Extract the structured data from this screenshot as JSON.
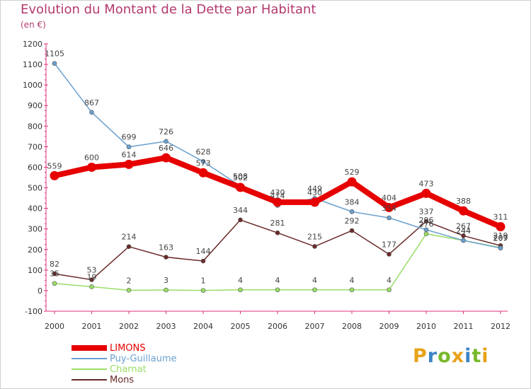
{
  "chart_data": {
    "type": "line",
    "title": "Evolution du Montant de la Dette par Habitant",
    "unit_label": "(en €)",
    "x": [
      "2000",
      "2001",
      "2002",
      "2003",
      "2004",
      "2005",
      "2006",
      "2007",
      "2008",
      "2009",
      "2010",
      "2011",
      "2012"
    ],
    "ylim": [
      -100,
      1200
    ],
    "yticks": [
      -100,
      0,
      100,
      200,
      300,
      400,
      500,
      600,
      700,
      800,
      900,
      1000,
      1100,
      1200
    ],
    "grid": false,
    "legend_position": "bottom-left",
    "series": [
      {
        "name": "LIMONS",
        "color": "#e60000",
        "values": [
          559,
          600,
          614,
          646,
          573,
          502,
          430,
          430,
          529,
          404,
          473,
          388,
          311
        ]
      },
      {
        "name": "Puy-Guillaume",
        "color": "#6aa0cf",
        "values": [
          1105,
          867,
          699,
          726,
          628,
          508,
          414,
          449,
          384,
          354,
          296,
          244,
          207
        ]
      },
      {
        "name": "Charnat",
        "color": "#99dd66",
        "values": [
          35,
          19,
          2,
          3,
          1,
          4,
          4,
          4,
          4,
          4,
          276,
          244,
          209
        ]
      },
      {
        "name": "Mons",
        "color": "#6b2a2a",
        "values": [
          82,
          53,
          214,
          163,
          144,
          344,
          281,
          215,
          292,
          177,
          337,
          267,
          219
        ]
      }
    ]
  },
  "brand": {
    "letters": [
      "P",
      "r",
      "o",
      "x",
      "i",
      "t",
      "i"
    ],
    "colors": [
      "#e8a21a",
      "#3b84c4",
      "#77b82a",
      "#e8a21a",
      "#3b84c4",
      "#77b82a",
      "#e8a21a"
    ]
  }
}
